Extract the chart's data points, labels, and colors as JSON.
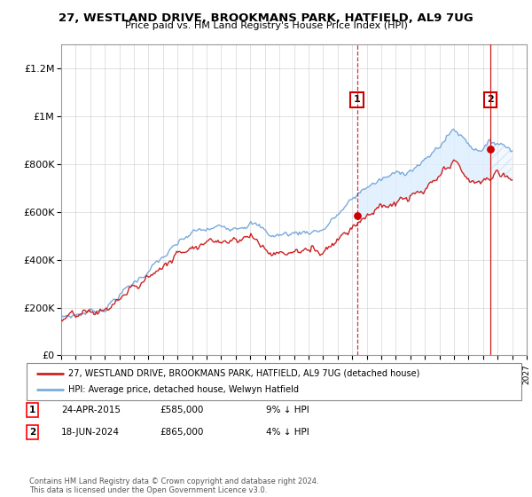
{
  "title": "27, WESTLAND DRIVE, BROOKMANS PARK, HATFIELD, AL9 7UG",
  "subtitle": "Price paid vs. HM Land Registry's House Price Index (HPI)",
  "legend_line1": "27, WESTLAND DRIVE, BROOKMANS PARK, HATFIELD, AL9 7UG (detached house)",
  "legend_line2": "HPI: Average price, detached house, Welwyn Hatfield",
  "sale1_date": "24-APR-2015",
  "sale1_price": "£585,000",
  "sale1_hpi": "9% ↓ HPI",
  "sale2_date": "18-JUN-2024",
  "sale2_price": "£865,000",
  "sale2_hpi": "4% ↓ HPI",
  "footer": "Contains HM Land Registry data © Crown copyright and database right 2024.\nThis data is licensed under the Open Government Licence v3.0.",
  "hpi_color": "#7aaadd",
  "price_color": "#cc2222",
  "sale_marker_color": "#cc0000",
  "fill_between_color": "#ddeeff",
  "hatch_color": "#ffcccc",
  "ylim": [
    0,
    1300000
  ],
  "yticks": [
    0,
    200000,
    400000,
    600000,
    800000,
    1000000,
    1200000
  ],
  "ytick_labels": [
    "£0",
    "£200K",
    "£400K",
    "£600K",
    "£800K",
    "£1M",
    "£1.2M"
  ],
  "xstart": 1995,
  "xend": 2027
}
